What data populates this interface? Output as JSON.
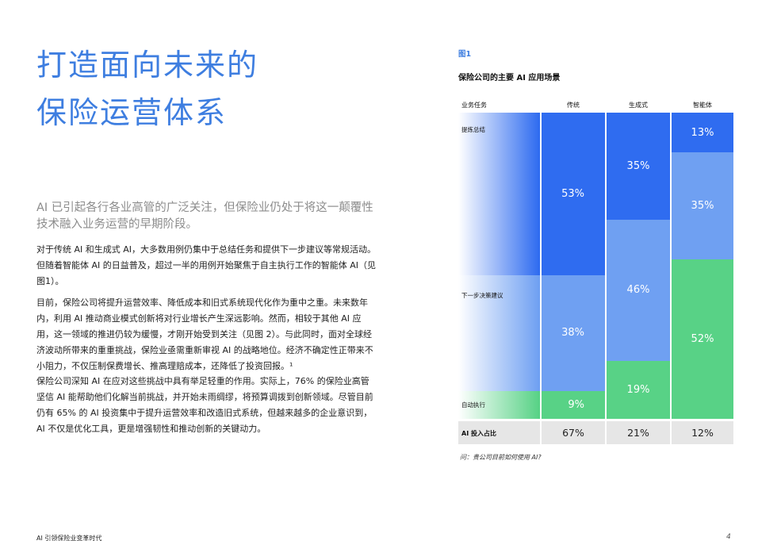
{
  "heading": {
    "line1": "打造面向未来的",
    "line2": "保险运营体系"
  },
  "lead": "AI 已引起各行各业高管的广泛关注，但保险业仍处于将这一颠覆性技术融入业务运营的早期阶段。",
  "paragraphs": {
    "p1": "对于传统 AI 和生成式 AI，大多数用例仍集中于总结任务和提供下一步建议等常规活动。但随着智能体 AI 的日益普及，超过一半的用例开始聚焦于自主执行工作的智能体 AI（见图1）。",
    "p2": "目前，保险公司将提升运营效率、降低成本和旧式系统现代化作为重中之重。未来数年内，利用 AI 推动商业模式创新将对行业增长产生深远影响。然而，相较于其他 AI 应用，这一领域的推进仍较为缓慢，才刚开始受到关注（见图 2）。与此同时，面对全球经济波动所带来的重重挑战，保险业亟需重新审视 AI 的战略地位。经济不确定性正带来不小阻力，不仅压制保费增长、推高理赔成本，还降低了投资回报。¹",
    "p3": "保险公司深知 AI 在应对这些挑战中具有举足轻重的作用。实际上，76% 的保险业高管坚信 AI 能帮助他们化解当前挑战，并开始未雨绸缪，将预算调拨到创新领域。尽管目前仍有 65% 的 AI 投资集中于提升运营效率和改造旧式系统，但越来越多的企业意识到，AI 不仅是优化工具，更是增强韧性和推动创新的关键动力。"
  },
  "footer": {
    "left": "AI 引领保险业变革时代",
    "page": "4"
  },
  "figure": {
    "label": "图1",
    "title": "保险公司的主要 AI 应用场景",
    "row_header": "业务任务",
    "note": "问：贵公司目前如何使用 AI?"
  },
  "colors": {
    "dark_blue": "#2f6cf0",
    "mid_blue": "#6fa0f2",
    "green": "#58d286",
    "accent": "#3e7ee0"
  },
  "chart_data": {
    "type": "bar",
    "title": "保险公司的主要 AI 应用场景",
    "stacked": true,
    "categories": [
      "传统",
      "生成式",
      "智能体"
    ],
    "series": [
      {
        "name": "提炼总结",
        "values": [
          53,
          35,
          13
        ],
        "labels": [
          "53%",
          "35%",
          "13%"
        ]
      },
      {
        "name": "下一步决策建议",
        "values": [
          38,
          46,
          35
        ],
        "labels": [
          "38%",
          "46%",
          "35%"
        ]
      },
      {
        "name": "自动执行",
        "values": [
          9,
          19,
          52
        ],
        "labels": [
          "9%",
          "19%",
          "52%"
        ]
      }
    ],
    "share": {
      "name": "AI 投入占比",
      "values": [
        67,
        21,
        12
      ],
      "labels": [
        "67%",
        "21%",
        "12%"
      ]
    }
  }
}
